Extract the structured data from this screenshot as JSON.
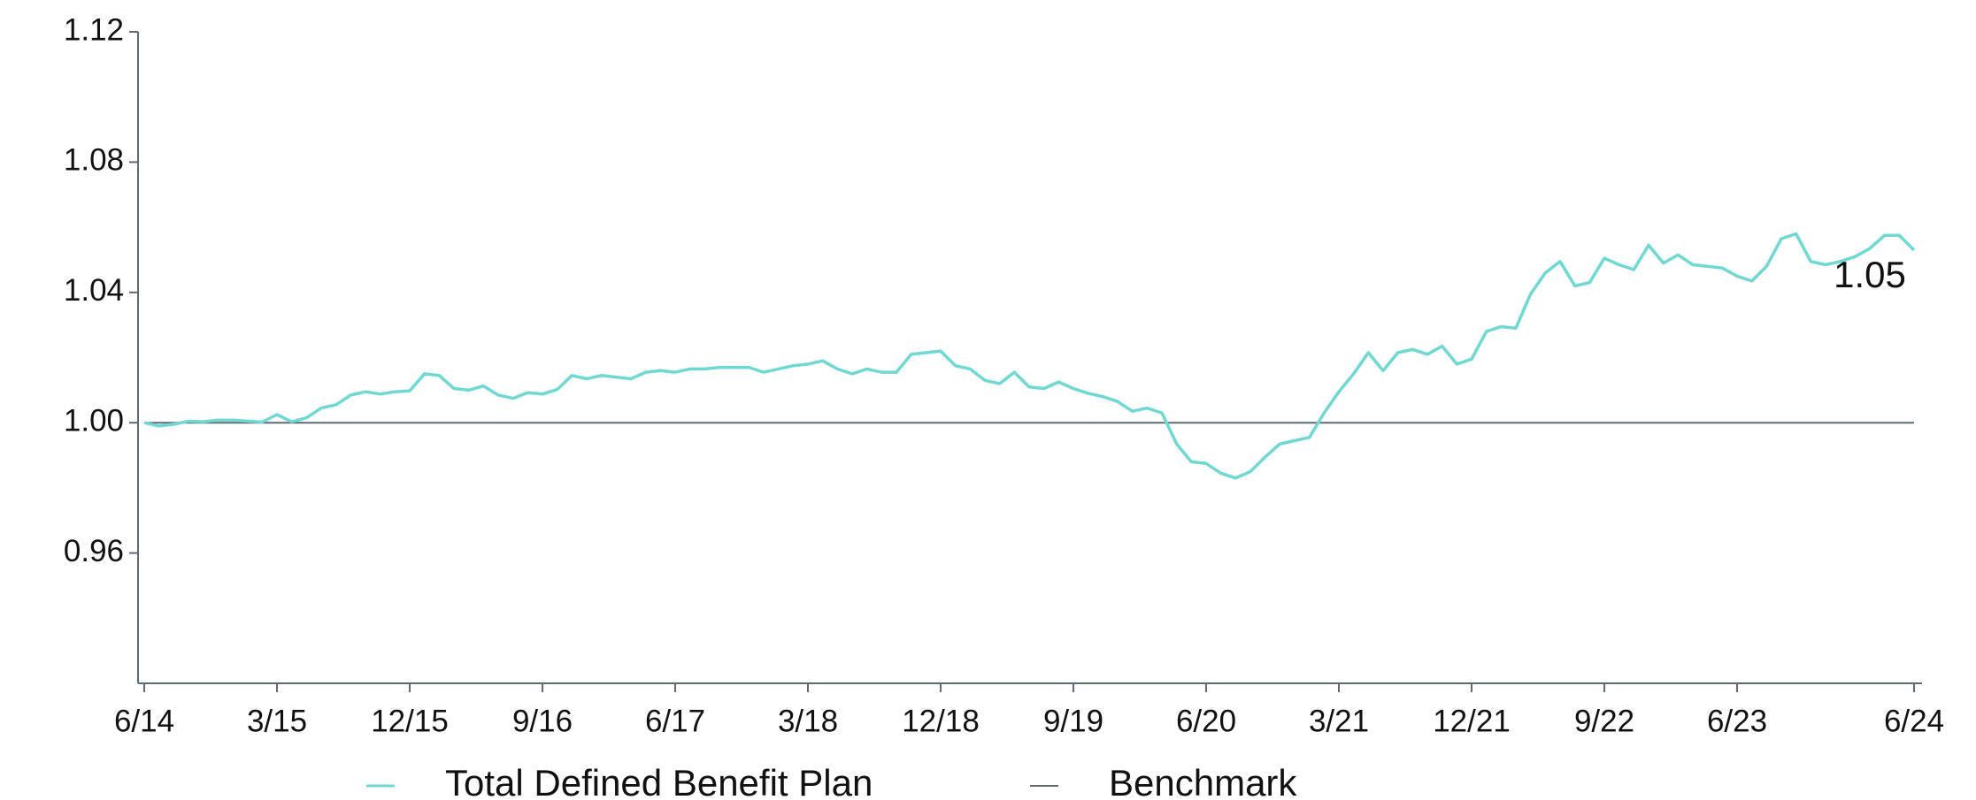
{
  "chart_data": {
    "type": "line",
    "categories": [
      "6/14",
      null,
      null,
      null,
      null,
      null,
      null,
      null,
      null,
      "3/15",
      null,
      null,
      null,
      null,
      null,
      null,
      null,
      null,
      "12/15",
      null,
      null,
      null,
      null,
      null,
      null,
      null,
      null,
      "9/16",
      null,
      null,
      null,
      null,
      null,
      null,
      null,
      null,
      "6/17",
      null,
      null,
      null,
      null,
      null,
      null,
      null,
      null,
      "3/18",
      null,
      null,
      null,
      null,
      null,
      null,
      null,
      null,
      "12/18",
      null,
      null,
      null,
      null,
      null,
      null,
      null,
      null,
      "9/19",
      null,
      null,
      null,
      null,
      null,
      null,
      null,
      null,
      "6/20",
      null,
      null,
      null,
      null,
      null,
      null,
      null,
      null,
      "3/21",
      null,
      null,
      null,
      null,
      null,
      null,
      null,
      null,
      "12/21",
      null,
      null,
      null,
      null,
      null,
      null,
      null,
      null,
      "9/22",
      null,
      null,
      null,
      null,
      null,
      null,
      null,
      null,
      "6/23",
      null,
      null,
      null,
      null,
      null,
      null,
      null,
      null,
      null,
      null,
      null,
      "6/24"
    ],
    "series": [
      {
        "name": "Total Defined Benefit Plan",
        "color": "#6fd8d2",
        "values": [
          1.0,
          0.999,
          0.9995,
          1.0005,
          1.0003,
          1.0008,
          1.0008,
          1.0005,
          1.0002,
          1.0025,
          1.0003,
          1.0015,
          1.0045,
          1.0055,
          1.0085,
          1.0095,
          1.0088,
          1.0095,
          1.0098,
          1.015,
          1.0145,
          1.0105,
          1.01,
          1.0113,
          1.0085,
          1.0075,
          1.0092,
          1.0088,
          1.0102,
          1.0145,
          1.0135,
          1.0145,
          1.014,
          1.0135,
          1.0155,
          1.016,
          1.0155,
          1.0165,
          1.0165,
          1.017,
          1.017,
          1.017,
          1.0155,
          1.0165,
          1.0175,
          1.018,
          1.019,
          1.0165,
          1.015,
          1.0165,
          1.0155,
          1.0155,
          1.021,
          1.0215,
          1.022,
          1.0175,
          1.0165,
          1.013,
          1.012,
          1.0155,
          1.011,
          1.0105,
          1.0125,
          1.0105,
          1.009,
          1.008,
          1.0065,
          1.0035,
          1.0045,
          1.003,
          0.9935,
          0.988,
          0.9875,
          0.9845,
          0.983,
          0.985,
          0.9895,
          0.9935,
          0.9945,
          0.9955,
          1.003,
          1.0095,
          1.015,
          1.0215,
          1.016,
          1.0215,
          1.0225,
          1.021,
          1.0235,
          1.018,
          1.0195,
          1.028,
          1.0295,
          1.029,
          1.0395,
          1.046,
          1.0495,
          1.042,
          1.043,
          1.0505,
          1.0485,
          1.047,
          1.0545,
          1.049,
          1.0515,
          1.0485,
          1.048,
          1.0475,
          1.045,
          1.0435,
          1.048,
          1.0565,
          1.058,
          1.0495,
          1.0485,
          1.0495,
          1.051,
          1.0535,
          1.0575,
          1.0575,
          1.053
        ]
      },
      {
        "name": "Benchmark",
        "color": "#5d6b73",
        "values": [
          1,
          1,
          1,
          1,
          1,
          1,
          1,
          1,
          1,
          1,
          1,
          1,
          1,
          1,
          1,
          1,
          1,
          1,
          1,
          1,
          1,
          1,
          1,
          1,
          1,
          1,
          1,
          1,
          1,
          1,
          1,
          1,
          1,
          1,
          1,
          1,
          1,
          1,
          1,
          1,
          1,
          1,
          1,
          1,
          1,
          1,
          1,
          1,
          1,
          1,
          1,
          1,
          1,
          1,
          1,
          1,
          1,
          1,
          1,
          1,
          1,
          1,
          1,
          1,
          1,
          1,
          1,
          1,
          1,
          1,
          1,
          1,
          1,
          1,
          1,
          1,
          1,
          1,
          1,
          1,
          1,
          1,
          1,
          1,
          1,
          1,
          1,
          1,
          1,
          1,
          1,
          1,
          1,
          1,
          1,
          1,
          1,
          1,
          1,
          1,
          1,
          1,
          1,
          1,
          1,
          1,
          1,
          1,
          1,
          1,
          1,
          1,
          1,
          1,
          1,
          1,
          1,
          1,
          1,
          1,
          1
        ]
      }
    ],
    "annotation": "1.05",
    "ylim": [
      0.92,
      1.12
    ],
    "yticks": [
      0.96,
      {
        "value": 1,
        "label": "1.00"
      },
      1.04,
      1.08,
      1.12
    ],
    "legend": "bottom"
  }
}
